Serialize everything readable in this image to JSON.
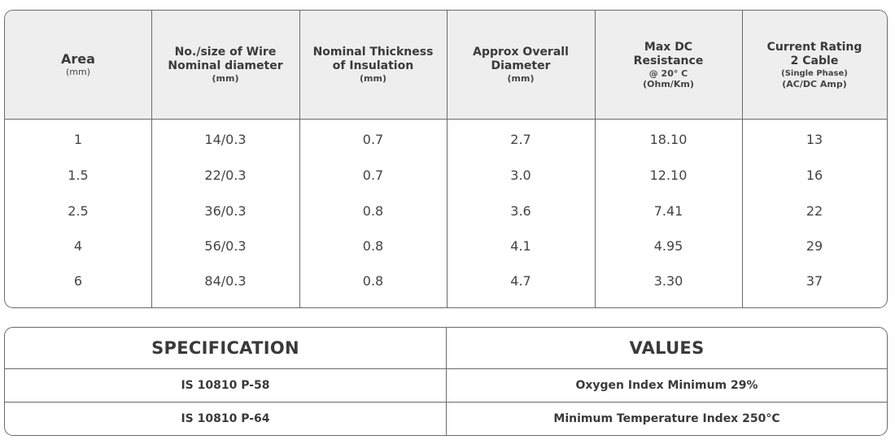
{
  "cable_table": {
    "headers": [
      {
        "main": [
          "Area"
        ],
        "sub": [
          "(mm)"
        ]
      },
      {
        "main": [
          "No./size of Wire",
          "Nominal diameter"
        ],
        "sub": [
          "(mm)"
        ]
      },
      {
        "main": [
          "Nominal Thickness",
          "of Insulation"
        ],
        "sub": [
          "(mm)"
        ]
      },
      {
        "main": [
          "Approx Overall",
          "Diameter"
        ],
        "sub": [
          "(mm)"
        ]
      },
      {
        "main": [
          "Max DC",
          "Resistance"
        ],
        "sub": [
          "@ 20° C",
          "(Ohm/Km)"
        ]
      },
      {
        "main": [
          "Current Rating",
          "2 Cable"
        ],
        "sub": [
          "(Single Phase)",
          "(AC/DC Amp)"
        ]
      }
    ],
    "rows": [
      [
        "1",
        "14/0.3",
        "0.7",
        "2.7",
        "18.10",
        "13"
      ],
      [
        "1.5",
        "22/0.3",
        "0.7",
        "3.0",
        "12.10",
        "16"
      ],
      [
        "2.5",
        "36/0.3",
        "0.8",
        "3.6",
        "7.41",
        "22"
      ],
      [
        "4",
        "56/0.3",
        "0.8",
        "4.1",
        "4.95",
        "29"
      ],
      [
        "6",
        "84/0.3",
        "0.8",
        "4.7",
        "3.30",
        "37"
      ]
    ]
  },
  "spec_table": {
    "headers": [
      "SPECIFICATION",
      "VALUES"
    ],
    "rows": [
      [
        "IS 10810 P-58",
        "Oxygen Index Minimum 29%"
      ],
      [
        "IS 10810 P-64",
        "Minimum Temperature Index 250°C"
      ]
    ]
  }
}
